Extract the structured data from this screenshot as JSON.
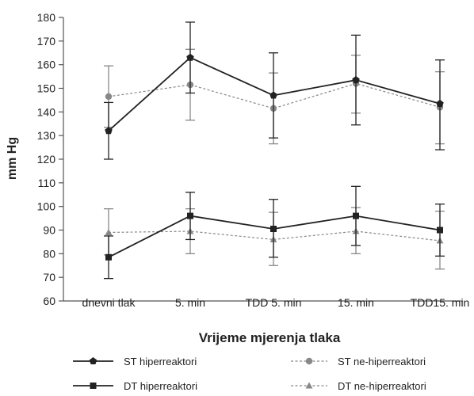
{
  "chart_data": {
    "type": "line",
    "xlabel": "Vrijeme mjerenja tlaka",
    "ylabel": "mm Hg",
    "ylim": [
      60,
      180
    ],
    "yticks": [
      60,
      70,
      80,
      90,
      100,
      110,
      120,
      130,
      140,
      150,
      160,
      170,
      180
    ],
    "categories": [
      "dnevni tlak",
      "5. min",
      "TDD 5. min",
      "15. min",
      "TDD15. min"
    ],
    "grid": false,
    "legend_position": "bottom",
    "series": [
      {
        "name": "ST hiperreaktori",
        "marker": "pentagon",
        "line": "solid",
        "color": "#222222",
        "values": [
          132,
          163,
          147,
          153.5,
          143.5
        ],
        "err_low": [
          120,
          148,
          129,
          134.5,
          124
        ],
        "err_high": [
          144,
          178,
          165,
          172.5,
          162
        ]
      },
      {
        "name": "ST  ne-hiperreaktori",
        "marker": "circle",
        "line": "dashed",
        "color": "#888888",
        "values": [
          146.5,
          151.5,
          141.5,
          152,
          142
        ],
        "err_low": [
          133.5,
          136.5,
          126.5,
          139.5,
          126.5
        ],
        "err_high": [
          159.5,
          166.5,
          156.5,
          164,
          157
        ]
      },
      {
        "name": "DT hiperreaktori",
        "marker": "square",
        "line": "solid",
        "color": "#222222",
        "values": [
          78.5,
          96,
          90.5,
          96,
          90
        ],
        "err_low": [
          69.5,
          86,
          78.5,
          83.5,
          79
        ],
        "err_high": [
          87.5,
          106,
          103,
          108.5,
          101
        ]
      },
      {
        "name": "DT  ne-hiperreaktori",
        "marker": "triangle",
        "line": "dashed",
        "color": "#888888",
        "values": [
          89,
          89.5,
          86,
          89.5,
          85.5
        ],
        "err_low": [
          79.5,
          80,
          75,
          80,
          73.5
        ],
        "err_high": [
          99,
          99,
          97.5,
          99.5,
          98
        ]
      }
    ]
  }
}
